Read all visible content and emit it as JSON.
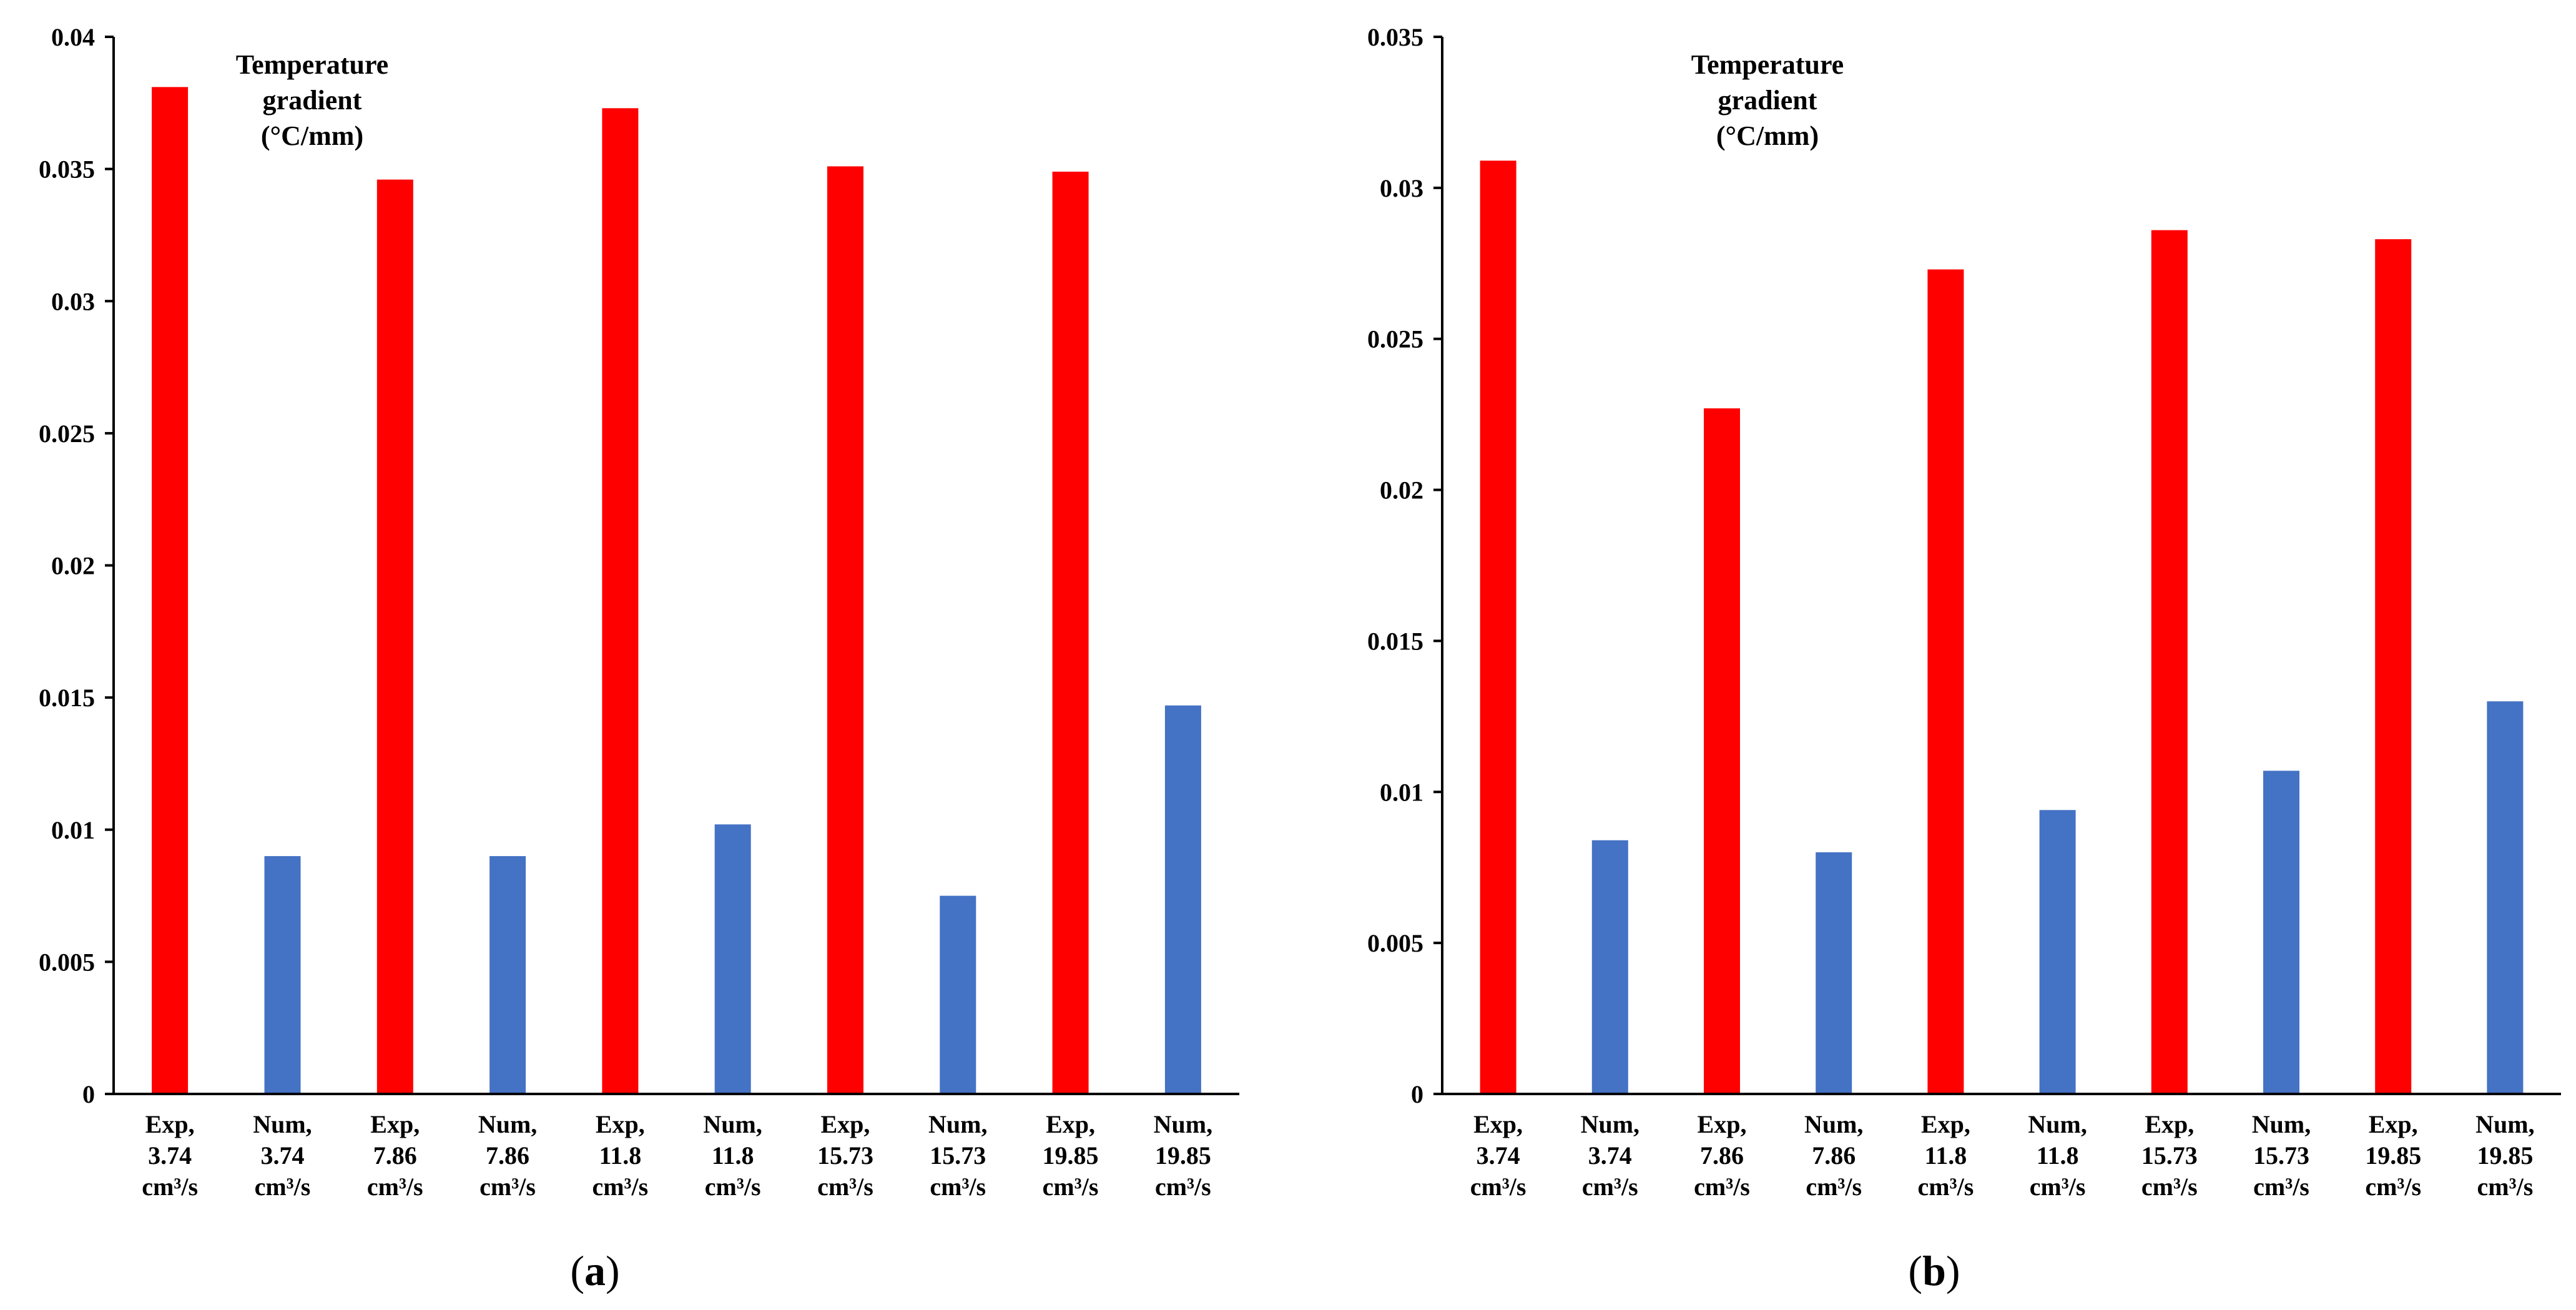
{
  "chart_data": [
    {
      "type": "bar",
      "panel_label": "a",
      "title_lines": [
        "Temperature",
        "gradient",
        "(°C/mm)"
      ],
      "categories": [
        [
          "Exp,",
          "3.74",
          "cm³/s"
        ],
        [
          "Num,",
          "3.74",
          "cm³/s"
        ],
        [
          "Exp,",
          "7.86",
          "cm³/s"
        ],
        [
          "Num,",
          "7.86",
          "cm³/s"
        ],
        [
          "Exp,",
          "11.8",
          "cm³/s"
        ],
        [
          "Num,",
          "11.8",
          "cm³/s"
        ],
        [
          "Exp,",
          "15.73",
          "cm³/s"
        ],
        [
          "Num,",
          "15.73",
          "cm³/s"
        ],
        [
          "Exp,",
          "19.85",
          "cm³/s"
        ],
        [
          "Num,",
          "19.85",
          "cm³/s"
        ]
      ],
      "values": [
        0.0381,
        0.009,
        0.0346,
        0.009,
        0.0373,
        0.0102,
        0.0351,
        0.0075,
        0.0349,
        0.0147
      ],
      "bar_colors": [
        "#ff0000",
        "#4472c4",
        "#ff0000",
        "#4472c4",
        "#ff0000",
        "#4472c4",
        "#ff0000",
        "#4472c4",
        "#ff0000",
        "#4472c4"
      ],
      "ylim": [
        0,
        0.04
      ],
      "yticks": [
        0,
        0.005,
        0.01,
        0.015,
        0.02,
        0.025,
        0.03,
        0.035,
        0.04
      ],
      "ytick_labels": [
        "0",
        "0.005",
        "0.01",
        "0.015",
        "0.02",
        "0.025",
        "0.03",
        "0.035",
        "0.04"
      ],
      "xlabel": "",
      "ylabel": "",
      "grid": false
    },
    {
      "type": "bar",
      "panel_label": "b",
      "title_lines": [
        "Temperature",
        "gradient",
        "(°C/mm)"
      ],
      "categories": [
        [
          "Exp,",
          "3.74",
          "cm³/s"
        ],
        [
          "Num,",
          "3.74",
          "cm³/s"
        ],
        [
          "Exp,",
          "7.86",
          "cm³/s"
        ],
        [
          "Num,",
          "7.86",
          "cm³/s"
        ],
        [
          "Exp,",
          "11.8",
          "cm³/s"
        ],
        [
          "Num,",
          "11.8",
          "cm³/s"
        ],
        [
          "Exp,",
          "15.73",
          "cm³/s"
        ],
        [
          "Num,",
          "15.73",
          "cm³/s"
        ],
        [
          "Exp,",
          "19.85",
          "cm³/s"
        ],
        [
          "Num,",
          "19.85",
          "cm³/s"
        ]
      ],
      "values": [
        0.0309,
        0.0084,
        0.0227,
        0.008,
        0.0273,
        0.0094,
        0.0286,
        0.0107,
        0.0283,
        0.013
      ],
      "bar_colors": [
        "#ff0000",
        "#4472c4",
        "#ff0000",
        "#4472c4",
        "#ff0000",
        "#4472c4",
        "#ff0000",
        "#4472c4",
        "#ff0000",
        "#4472c4"
      ],
      "ylim": [
        0,
        0.035
      ],
      "yticks": [
        0,
        0.005,
        0.01,
        0.015,
        0.02,
        0.025,
        0.03,
        0.035
      ],
      "ytick_labels": [
        "0",
        "0.005",
        "0.01",
        "0.015",
        "0.02",
        "0.025",
        "0.03",
        "0.035"
      ],
      "xlabel": "",
      "ylabel": "",
      "grid": false
    }
  ]
}
